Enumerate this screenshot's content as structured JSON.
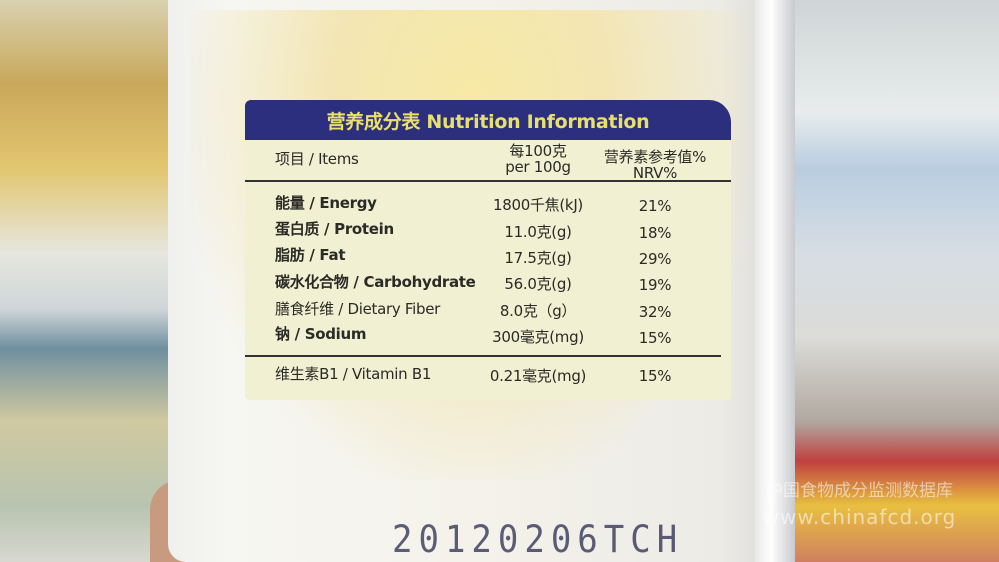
{
  "label": {
    "title": "营养成分表 Nutrition Information",
    "header": {
      "items": "项目 / Items",
      "per_line1": "每100克",
      "per_line2": "per 100g",
      "nrv_line1": "营养素参考值%",
      "nrv_line2": "NRV%"
    },
    "rows": [
      {
        "name": "能量 / Energy",
        "amount": "1800千焦(kJ)",
        "nrv": "21%"
      },
      {
        "name": "蛋白质 / Protein",
        "amount": "11.0克(g)",
        "nrv": "18%"
      },
      {
        "name": "脂肪 / Fat",
        "amount": "17.5克(g)",
        "nrv": "29%"
      },
      {
        "name": "碳水化合物 / Carbohydrate",
        "amount": "56.0克(g)",
        "nrv": "19%"
      },
      {
        "name": "膳食纤维 / Dietary Fiber",
        "amount": "8.0克（g）",
        "nrv": "32%"
      },
      {
        "name": "钠 / Sodium",
        "amount": "300毫克(mg)",
        "nrv": "15%"
      }
    ],
    "extra_row": {
      "name": "维生素B1 / Vitamin B1",
      "amount": "0.21毫克(mg)",
      "nrv": "15%"
    }
  },
  "date_code": "20120206TCH",
  "watermark": {
    "line1": "中国食物成分监测数据库",
    "line2": "www.chinafcd.org"
  },
  "colors": {
    "header_band": "#2b2f7e",
    "header_text": "#e8e06a",
    "label_bg": "#f2f0d2"
  }
}
